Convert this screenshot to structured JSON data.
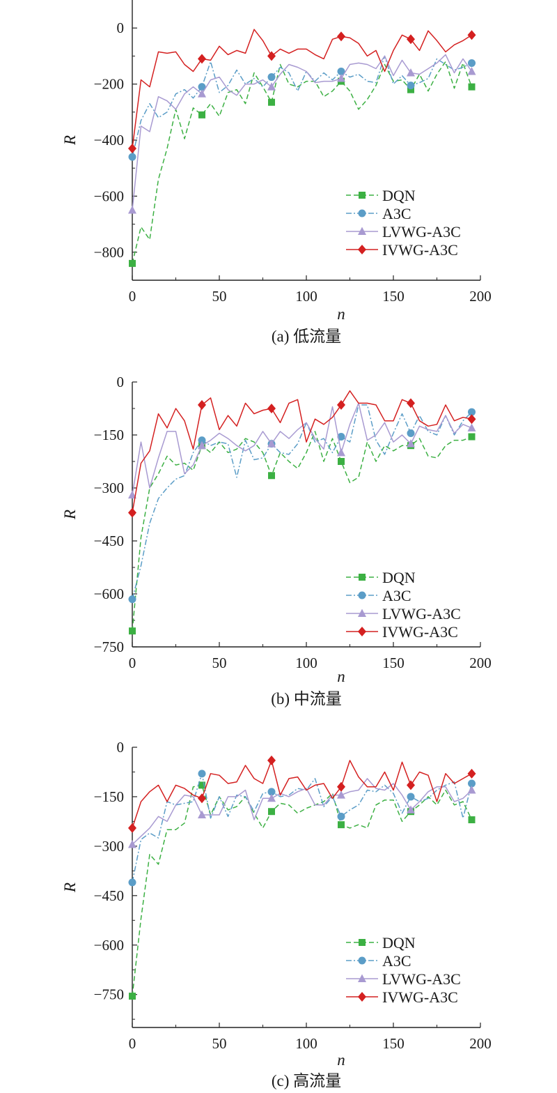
{
  "chart_data": [
    {
      "type": "line",
      "caption": "(a) 低流量",
      "xlabel": "n",
      "ylabel": "R",
      "xlim": [
        0,
        200
      ],
      "ylim": [
        -900,
        100
      ],
      "x_ticks": [
        0,
        50,
        100,
        150,
        200
      ],
      "y_ticks": [
        0,
        -200,
        -400,
        -600,
        -800
      ],
      "x": [
        0,
        5,
        10,
        15,
        20,
        25,
        30,
        35,
        40,
        45,
        50,
        55,
        60,
        65,
        70,
        75,
        80,
        85,
        90,
        95,
        100,
        105,
        110,
        115,
        120,
        125,
        130,
        135,
        140,
        145,
        150,
        155,
        160,
        165,
        170,
        175,
        180,
        185,
        190,
        195
      ],
      "series": [
        {
          "name": "DQN",
          "color": "#3cb043",
          "dash": "7,4",
          "marker": "square",
          "marker_points": [
            0,
            40,
            80,
            120,
            160,
            195
          ],
          "values": [
            -840,
            -710,
            -755,
            -540,
            -430,
            -290,
            -395,
            -285,
            -310,
            -270,
            -315,
            -230,
            -220,
            -270,
            -160,
            -210,
            -265,
            -130,
            -200,
            -210,
            -190,
            -190,
            -245,
            -225,
            -190,
            -225,
            -290,
            -255,
            -205,
            -130,
            -190,
            -185,
            -220,
            -165,
            -225,
            -165,
            -120,
            -215,
            -125,
            -210
          ]
        },
        {
          "name": "A3C",
          "color": "#5b9dc7",
          "dash": "8,3,2,3",
          "marker": "circle",
          "marker_points": [
            0,
            40,
            80,
            120,
            160,
            195
          ],
          "values": [
            -460,
            -330,
            -270,
            -320,
            -300,
            -235,
            -220,
            -250,
            -210,
            -120,
            -230,
            -205,
            -150,
            -200,
            -180,
            -210,
            -175,
            -140,
            -160,
            -225,
            -155,
            -190,
            -160,
            -185,
            -155,
            -175,
            -165,
            -190,
            -195,
            -100,
            -200,
            -170,
            -205,
            -195,
            -180,
            -110,
            -130,
            -150,
            -140,
            -125
          ]
        },
        {
          "name": "LVWG-A3C",
          "color": "#a89ad1",
          "dash": "",
          "marker": "triangle",
          "marker_points": [
            0,
            40,
            80,
            120,
            160,
            195
          ],
          "values": [
            -650,
            -350,
            -370,
            -245,
            -260,
            -290,
            -235,
            -210,
            -235,
            -185,
            -175,
            -220,
            -240,
            -200,
            -200,
            -185,
            -210,
            -165,
            -130,
            -140,
            -155,
            -195,
            -190,
            -190,
            -180,
            -130,
            -125,
            -130,
            -145,
            -100,
            -170,
            -115,
            -160,
            -165,
            -145,
            -125,
            -95,
            -160,
            -110,
            -155
          ]
        },
        {
          "name": "IVWG-A3C",
          "color": "#d42020",
          "dash": "",
          "marker": "diamond",
          "marker_points": [
            0,
            40,
            80,
            120,
            160,
            195
          ],
          "values": [
            -430,
            -185,
            -210,
            -85,
            -90,
            -85,
            -130,
            -155,
            -110,
            -115,
            -65,
            -95,
            -80,
            -90,
            -5,
            -45,
            -100,
            -75,
            -90,
            -75,
            -75,
            -95,
            -110,
            -40,
            -30,
            -35,
            -55,
            -100,
            -80,
            -155,
            -80,
            -25,
            -40,
            -80,
            -10,
            -45,
            -85,
            -60,
            -45,
            -25
          ]
        }
      ],
      "legend": {
        "position": "lower-right"
      }
    },
    {
      "type": "line",
      "caption": "(b) 中流量",
      "xlabel": "n",
      "ylabel": "R",
      "xlim": [
        0,
        200
      ],
      "ylim": [
        -750,
        0
      ],
      "x_ticks": [
        0,
        50,
        100,
        150,
        200
      ],
      "y_ticks": [
        0,
        -150,
        -300,
        -450,
        -600,
        -750
      ],
      "x": [
        0,
        5,
        10,
        15,
        20,
        25,
        30,
        35,
        40,
        45,
        50,
        55,
        60,
        65,
        70,
        75,
        80,
        85,
        90,
        95,
        100,
        105,
        110,
        115,
        120,
        125,
        130,
        135,
        140,
        145,
        150,
        155,
        160,
        165,
        170,
        175,
        180,
        185,
        190,
        195
      ],
      "series": [
        {
          "name": "DQN",
          "color": "#3cb043",
          "dash": "7,4",
          "marker": "square",
          "marker_points": [
            0,
            40,
            80,
            120,
            160,
            195
          ],
          "values": [
            -705,
            -440,
            -300,
            -260,
            -210,
            -235,
            -230,
            -250,
            -180,
            -200,
            -170,
            -200,
            -190,
            -160,
            -170,
            -200,
            -265,
            -200,
            -225,
            -245,
            -200,
            -140,
            -225,
            -160,
            -225,
            -285,
            -270,
            -170,
            -225,
            -180,
            -195,
            -180,
            -180,
            -160,
            -210,
            -215,
            -180,
            -165,
            -165,
            -155
          ]
        },
        {
          "name": "A3C",
          "color": "#5b9dc7",
          "dash": "8,3,2,3",
          "marker": "circle",
          "marker_points": [
            0,
            40,
            80,
            120,
            160,
            195
          ],
          "values": [
            -615,
            -520,
            -400,
            -330,
            -300,
            -275,
            -265,
            -200,
            -165,
            -180,
            -170,
            -175,
            -270,
            -165,
            -220,
            -215,
            -175,
            -200,
            -205,
            -175,
            -115,
            -170,
            -160,
            -200,
            -155,
            -170,
            -65,
            -65,
            -165,
            -205,
            -145,
            -90,
            -145,
            -95,
            -140,
            -150,
            -95,
            -150,
            -110,
            -85
          ]
        },
        {
          "name": "LVWG-A3C",
          "color": "#a89ad1",
          "dash": "",
          "marker": "triangle",
          "marker_points": [
            0,
            40,
            80,
            120,
            160,
            195
          ],
          "values": [
            -320,
            -170,
            -300,
            -215,
            -140,
            -140,
            -260,
            -235,
            -180,
            -165,
            -145,
            -160,
            -180,
            -195,
            -180,
            -140,
            -175,
            -140,
            -160,
            -135,
            -115,
            -160,
            -190,
            -70,
            -200,
            -120,
            -60,
            -165,
            -150,
            -115,
            -170,
            -150,
            -175,
            -125,
            -135,
            -140,
            -95,
            -145,
            -120,
            -130
          ]
        },
        {
          "name": "IVWG-A3C",
          "color": "#d42020",
          "dash": "",
          "marker": "diamond",
          "marker_points": [
            0,
            40,
            80,
            120,
            160,
            195
          ],
          "values": [
            -370,
            -230,
            -195,
            -90,
            -130,
            -75,
            -110,
            -190,
            -65,
            -45,
            -135,
            -95,
            -125,
            -60,
            -90,
            -80,
            -75,
            -115,
            -60,
            -50,
            -170,
            -105,
            -120,
            -100,
            -65,
            -25,
            -60,
            -60,
            -65,
            -110,
            -110,
            -50,
            -60,
            -110,
            -125,
            -120,
            -65,
            -110,
            -100,
            -105
          ]
        }
      ],
      "legend": {
        "position": "lower-right"
      }
    },
    {
      "type": "line",
      "caption": "(c) 高流量",
      "xlabel": "n",
      "ylabel": "R",
      "xlim": [
        0,
        200
      ],
      "ylim": [
        -850,
        0
      ],
      "x_ticks": [
        0,
        50,
        100,
        150,
        200
      ],
      "y_ticks": [
        0,
        -150,
        -300,
        -450,
        -600,
        -750
      ],
      "x": [
        0,
        5,
        10,
        15,
        20,
        25,
        30,
        35,
        40,
        45,
        50,
        55,
        60,
        65,
        70,
        75,
        80,
        85,
        90,
        95,
        100,
        105,
        110,
        115,
        120,
        125,
        130,
        135,
        140,
        145,
        150,
        155,
        160,
        165,
        170,
        175,
        180,
        185,
        190,
        195
      ],
      "series": [
        {
          "name": "DQN",
          "color": "#3cb043",
          "dash": "7,4",
          "marker": "square",
          "marker_points": [
            0,
            40,
            80,
            120,
            160,
            195
          ],
          "values": [
            -755,
            -520,
            -325,
            -355,
            -250,
            -250,
            -230,
            -120,
            -115,
            -205,
            -150,
            -190,
            -180,
            -150,
            -200,
            -245,
            -195,
            -170,
            -175,
            -200,
            -185,
            -175,
            -165,
            -140,
            -235,
            -245,
            -235,
            -245,
            -175,
            -160,
            -160,
            -225,
            -195,
            -175,
            -150,
            -175,
            -130,
            -175,
            -165,
            -220
          ]
        },
        {
          "name": "A3C",
          "color": "#5b9dc7",
          "dash": "8,3,2,3",
          "marker": "circle",
          "marker_points": [
            0,
            40,
            80,
            120,
            160,
            195
          ],
          "values": [
            -410,
            -280,
            -260,
            -275,
            -165,
            -175,
            -170,
            -165,
            -80,
            -215,
            -150,
            -210,
            -145,
            -150,
            -195,
            -140,
            -135,
            -150,
            -145,
            -125,
            -130,
            -95,
            -180,
            -150,
            -210,
            -190,
            -175,
            -130,
            -135,
            -115,
            -140,
            -200,
            -150,
            -165,
            -155,
            -130,
            -115,
            -105,
            -215,
            -110
          ]
        },
        {
          "name": "LVWG-A3C",
          "color": "#a89ad1",
          "dash": "",
          "marker": "triangle",
          "marker_points": [
            0,
            40,
            80,
            120,
            160,
            195
          ],
          "values": [
            -295,
            -270,
            -245,
            -210,
            -225,
            -175,
            -145,
            -150,
            -205,
            -205,
            -205,
            -150,
            -150,
            -130,
            -220,
            -155,
            -155,
            -140,
            -150,
            -135,
            -125,
            -175,
            -175,
            -145,
            -145,
            -135,
            -130,
            -95,
            -125,
            -130,
            -110,
            -145,
            -190,
            -165,
            -135,
            -120,
            -120,
            -165,
            -155,
            -130
          ]
        },
        {
          "name": "IVWG-A3C",
          "color": "#d42020",
          "dash": "",
          "marker": "diamond",
          "marker_points": [
            0,
            40,
            80,
            120,
            160,
            195
          ],
          "values": [
            -245,
            -165,
            -135,
            -115,
            -165,
            -115,
            -125,
            -145,
            -155,
            -80,
            -85,
            -110,
            -105,
            -55,
            -95,
            -110,
            -40,
            -145,
            -95,
            -90,
            -130,
            -115,
            -110,
            -155,
            -120,
            -40,
            -90,
            -120,
            -120,
            -75,
            -130,
            -45,
            -115,
            -75,
            -85,
            -165,
            -80,
            -110,
            -95,
            -80
          ]
        }
      ],
      "legend": {
        "position": "lower-right"
      }
    }
  ]
}
